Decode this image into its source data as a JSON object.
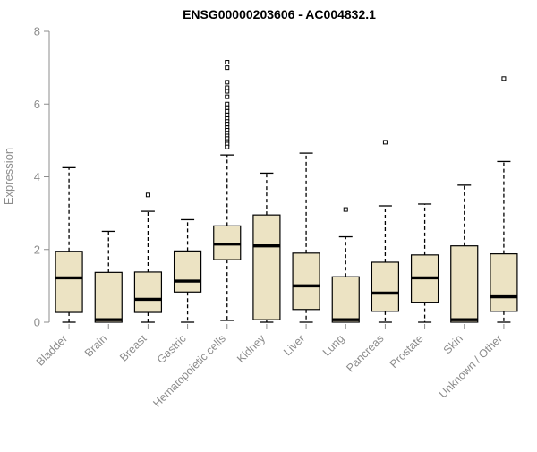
{
  "chart_data": {
    "type": "boxplot",
    "title": "ENSG00000203606 - AC004832.1",
    "ylabel": "Expression",
    "xlabel": "",
    "ylim": [
      0,
      8
    ],
    "yticks": [
      0,
      2,
      4,
      6,
      8
    ],
    "grid": false,
    "legend": "none",
    "box_fill": "#ECE3C3",
    "box_stroke": "#000000",
    "axis_color": "#8C8C8C",
    "categories": [
      "Bladder",
      "Brain",
      "Breast",
      "Gastric",
      "Hematopoietic cells",
      "Kidney",
      "Liver",
      "Lung",
      "Pancreas",
      "Prostate",
      "Skin",
      "Unknown / Other"
    ],
    "boxes": [
      {
        "category": "Bladder",
        "whisker_low": 0,
        "q1": 0.27,
        "median": 1.22,
        "q3": 1.95,
        "whisker_high": 4.25,
        "outliers": []
      },
      {
        "category": "Brain",
        "whisker_low": 0,
        "q1": 0,
        "median": 0.07,
        "q3": 1.37,
        "whisker_high": 2.5,
        "outliers": []
      },
      {
        "category": "Breast",
        "whisker_low": 0,
        "q1": 0.27,
        "median": 0.63,
        "q3": 1.38,
        "whisker_high": 3.05,
        "outliers": [
          3.5
        ]
      },
      {
        "category": "Gastric",
        "whisker_low": 0,
        "q1": 0.83,
        "median": 1.13,
        "q3": 1.96,
        "whisker_high": 2.82,
        "outliers": []
      },
      {
        "category": "Hematopoietic cells",
        "whisker_low": 0.05,
        "q1": 1.72,
        "median": 2.15,
        "q3": 2.65,
        "whisker_high": 4.6,
        "outliers": [
          7.15,
          7.0,
          6.6,
          6.45,
          6.35,
          6.2,
          6.0,
          5.9,
          5.8,
          5.7,
          5.6,
          5.52,
          5.45,
          5.35,
          5.28,
          5.2,
          5.12,
          5.05,
          4.97,
          4.9,
          4.82
        ]
      },
      {
        "category": "Kidney",
        "whisker_low": 0,
        "q1": 0.07,
        "median": 2.1,
        "q3": 2.95,
        "whisker_high": 4.1,
        "outliers": []
      },
      {
        "category": "Liver",
        "whisker_low": 0,
        "q1": 0.35,
        "median": 1.0,
        "q3": 1.9,
        "whisker_high": 4.65,
        "outliers": []
      },
      {
        "category": "Lung",
        "whisker_low": 0,
        "q1": 0,
        "median": 0.07,
        "q3": 1.25,
        "whisker_high": 2.35,
        "outliers": [
          3.1
        ]
      },
      {
        "category": "Pancreas",
        "whisker_low": 0,
        "q1": 0.3,
        "median": 0.8,
        "q3": 1.65,
        "whisker_high": 3.2,
        "outliers": [
          4.95
        ]
      },
      {
        "category": "Prostate",
        "whisker_low": 0,
        "q1": 0.55,
        "median": 1.22,
        "q3": 1.85,
        "whisker_high": 3.25,
        "outliers": []
      },
      {
        "category": "Skin",
        "whisker_low": 0,
        "q1": 0,
        "median": 0.07,
        "q3": 2.1,
        "whisker_high": 3.77,
        "outliers": []
      },
      {
        "category": "Unknown / Other",
        "whisker_low": 0,
        "q1": 0.3,
        "median": 0.7,
        "q3": 1.88,
        "whisker_high": 4.42,
        "outliers": [
          6.7
        ]
      }
    ]
  }
}
